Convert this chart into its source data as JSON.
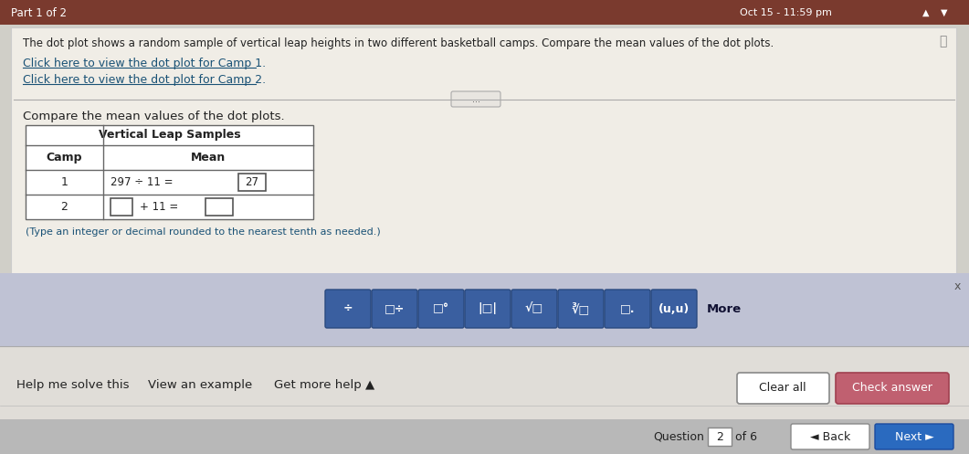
{
  "bg_color": "#d0cfc8",
  "header_bg": "#7a3a2e",
  "header_text": "Part 1 of 2",
  "header_time": "Oct 15 - 11:59 pm",
  "body_bg": "#f0ede6",
  "problem_text": "The dot plot shows a random sample of vertical leap heights in two different basketball camps. Compare the mean values of the dot plots.",
  "link1": "Click here to view the dot plot for Camp 1.",
  "link2": "Click here to view the dot plot for Camp 2.",
  "section_label": "Compare the mean values of the dot plots.",
  "table_title": "Vertical Leap Samples",
  "col1_header": "Camp",
  "col2_header": "Mean",
  "row1_col1": "1",
  "row2_col1": "2",
  "row1_mean_text": "297 ÷ 11 =",
  "row1_mean_val": "27",
  "row2_mean_text": "+ 11 =",
  "note": "(Type an integer or decimal rounded to the nearest tenth as needed.)",
  "toolbar_bg": "#bfc2d4",
  "bottom_bg": "#e0ddd8",
  "help_text": "Help me solve this",
  "view_example": "View an example",
  "get_help": "Get more help ▲",
  "clear_all": "Clear all",
  "check_answer": "Check answer",
  "question_nav": "Question",
  "question_num": "2",
  "of_text": "of 6",
  "back_btn": "◄ Back",
  "next_btn": "Next ►",
  "x_close": "x",
  "math_btn_labels": [
    "÷",
    "□÷",
    "□°",
    "|□|",
    "√□",
    "∛□",
    "□.",
    "(u,u)"
  ],
  "more_text": "More"
}
